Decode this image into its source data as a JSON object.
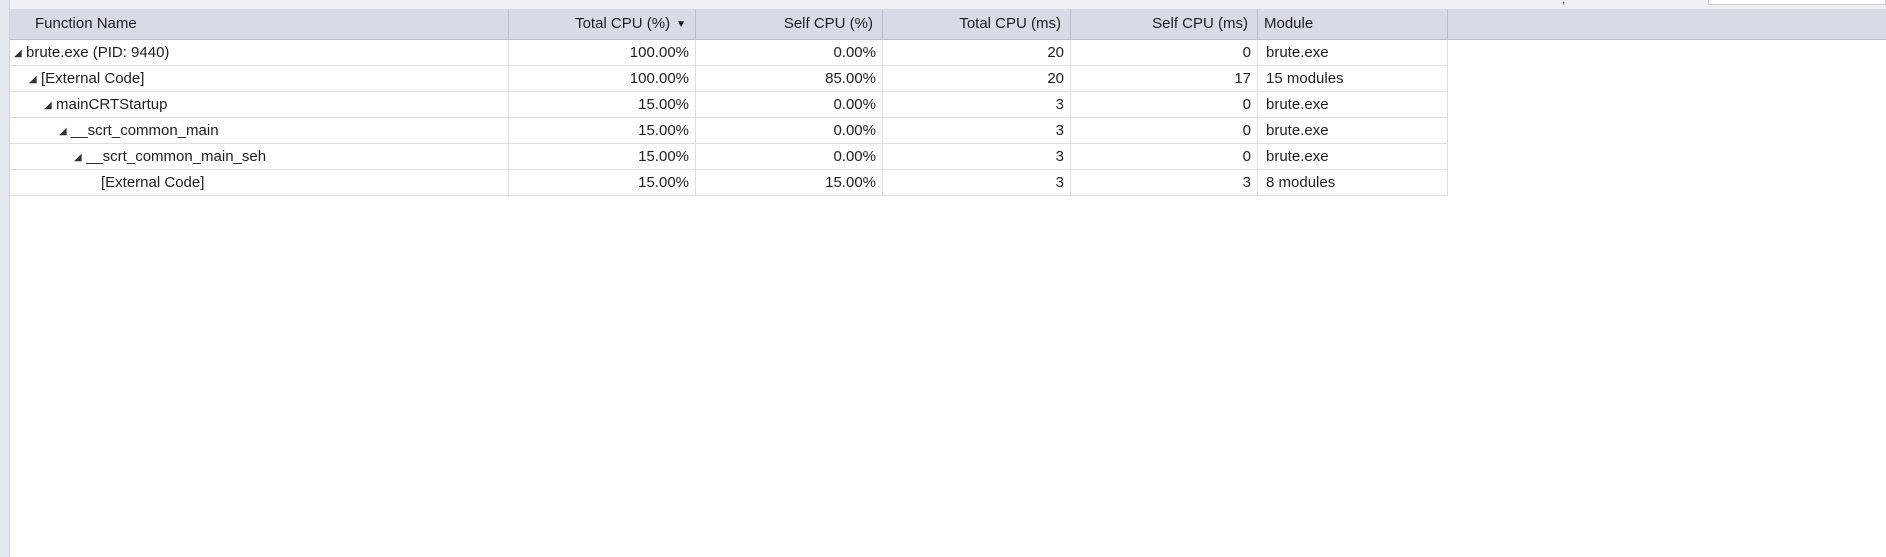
{
  "columns": {
    "function_name": "Function Name",
    "total_cpu_pct": "Total CPU (%)",
    "self_cpu_pct": "Self CPU (%)",
    "total_cpu_ms": "Total CPU (ms)",
    "self_cpu_ms": "Self CPU (ms)",
    "module": "Module"
  },
  "sort": {
    "column": "total_cpu_pct",
    "direction": "descending",
    "icon": "sort-descending-arrow-icon"
  },
  "rows": [
    {
      "name": "brute.exe (PID: 9440)",
      "depth": 0,
      "expanded": true,
      "total_cpu_pct": "100.00%",
      "self_cpu_pct": "0.00%",
      "total_cpu_ms": "20",
      "self_cpu_ms": "0",
      "module": "brute.exe"
    },
    {
      "name": "[External Code]",
      "depth": 1,
      "expanded": true,
      "total_cpu_pct": "100.00%",
      "self_cpu_pct": "85.00%",
      "total_cpu_ms": "20",
      "self_cpu_ms": "17",
      "module": "15 modules"
    },
    {
      "name": "mainCRTStartup",
      "depth": 2,
      "expanded": true,
      "total_cpu_pct": "15.00%",
      "self_cpu_pct": "0.00%",
      "total_cpu_ms": "3",
      "self_cpu_ms": "0",
      "module": "brute.exe"
    },
    {
      "name": "__scrt_common_main",
      "depth": 3,
      "expanded": true,
      "total_cpu_pct": "15.00%",
      "self_cpu_pct": "0.00%",
      "total_cpu_ms": "3",
      "self_cpu_ms": "0",
      "module": "brute.exe"
    },
    {
      "name": "__scrt_common_main_seh",
      "depth": 4,
      "expanded": true,
      "total_cpu_pct": "15.00%",
      "self_cpu_pct": "0.00%",
      "total_cpu_ms": "3",
      "self_cpu_ms": "0",
      "module": "brute.exe"
    },
    {
      "name": "[External Code]",
      "depth": 5,
      "expanded": false,
      "total_cpu_pct": "15.00%",
      "self_cpu_pct": "15.00%",
      "total_cpu_ms": "3",
      "self_cpu_ms": "3",
      "module": "8 modules"
    }
  ],
  "icons": {
    "expanded": "expanded-triangle-icon"
  }
}
